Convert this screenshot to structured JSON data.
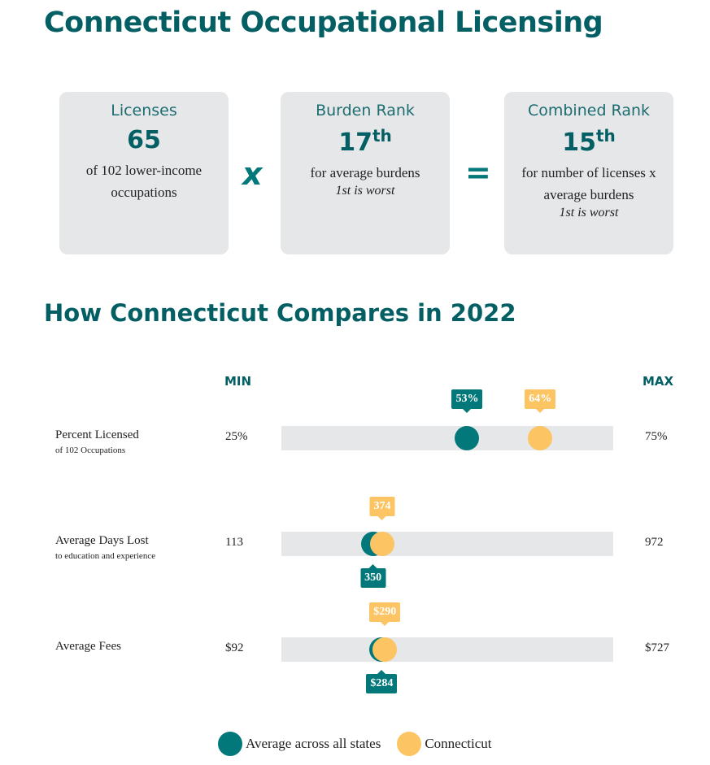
{
  "title": "Connecticut Occupational Licensing",
  "cards": [
    {
      "title": "Licenses",
      "value": "65",
      "sup": "",
      "desc1": "of 102 lower-income",
      "desc2": "occupations",
      "note": ""
    },
    {
      "title": "Burden Rank",
      "value": "17",
      "sup": "th",
      "desc1": "for average burdens",
      "desc2": "",
      "note": "1st is worst"
    },
    {
      "title": "Combined Rank",
      "value": "15",
      "sup": "th",
      "desc1": "for number of licenses x",
      "desc2": "average burdens",
      "note": "1st is worst"
    }
  ],
  "operators": {
    "times": "x",
    "equals": "="
  },
  "compare_title": "How Connecticut Compares in 2022",
  "chart_data": {
    "type": "dot-range",
    "min_label": "MIN",
    "max_label": "MAX",
    "series_colors": {
      "average": "#03787a",
      "connecticut": "#fcc462"
    },
    "rows": [
      {
        "label": "Percent Licensed",
        "sublabel": "of 102 Occupations",
        "min": 25,
        "max": 75,
        "min_text": "25%",
        "max_text": "75%",
        "average": 53,
        "average_text": "53%",
        "connecticut": 64,
        "connecticut_text": "64%"
      },
      {
        "label": "Average Days Lost",
        "sublabel": "to education and experience",
        "min": 113,
        "max": 972,
        "min_text": "113",
        "max_text": "972",
        "average": 350,
        "average_text": "350",
        "connecticut": 374,
        "connecticut_text": "374"
      },
      {
        "label": "Average Fees",
        "sublabel": "",
        "min": 92,
        "max": 727,
        "min_text": "$92",
        "max_text": "$727",
        "average": 284,
        "average_text": "$284",
        "connecticut": 290,
        "connecticut_text": "$290"
      }
    ],
    "legend": [
      {
        "name": "Average across all states"
      },
      {
        "name": "Connecticut"
      }
    ]
  }
}
